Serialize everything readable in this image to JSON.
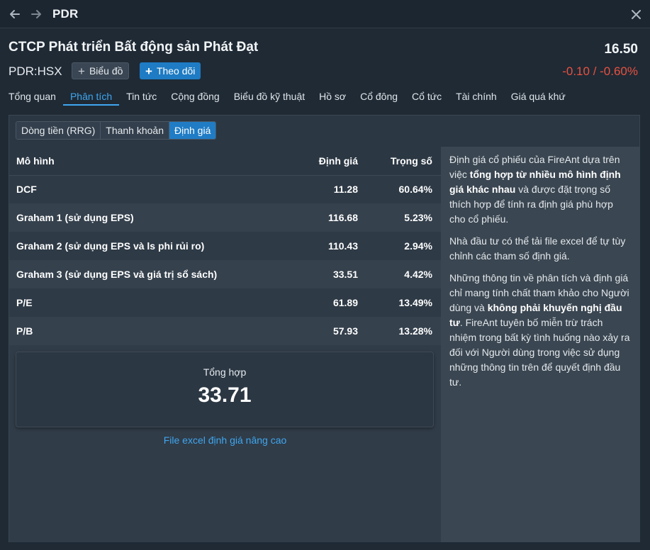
{
  "window": {
    "title": "PDR"
  },
  "header": {
    "company_name": "CTCP Phát triển Bất động sản Phát Đạt",
    "ticker": "PDR:HSX",
    "price": "16.50",
    "change": "-0.10 / -0.60%",
    "chart_button": "Biểu đồ",
    "follow_button": "Theo dõi",
    "colors": {
      "negative": "#e8513f",
      "accent": "#1e7bc4",
      "link": "#3fa6ef"
    }
  },
  "tabs": [
    {
      "label": "Tổng quan",
      "active": false
    },
    {
      "label": "Phân tích",
      "active": true
    },
    {
      "label": "Tin tức",
      "active": false
    },
    {
      "label": "Cộng đồng",
      "active": false
    },
    {
      "label": "Biểu đồ kỹ thuật",
      "active": false
    },
    {
      "label": "Hồ sơ",
      "active": false
    },
    {
      "label": "Cổ đông",
      "active": false
    },
    {
      "label": "Cổ tức",
      "active": false
    },
    {
      "label": "Tài chính",
      "active": false
    },
    {
      "label": "Giá quá khứ",
      "active": false
    }
  ],
  "subtabs": [
    {
      "label": "Dòng tiền (RRG)",
      "active": false
    },
    {
      "label": "Thanh khoản",
      "active": false
    },
    {
      "label": "Định giá",
      "active": true
    }
  ],
  "valuation": {
    "columns": {
      "model": "Mô hình",
      "value": "Định giá",
      "weight": "Trọng số"
    },
    "rows": [
      {
        "model": "DCF",
        "value": "11.28",
        "weight": "60.64%"
      },
      {
        "model": "Graham 1 (sử dụng EPS)",
        "value": "116.68",
        "weight": "5.23%"
      },
      {
        "model": "Graham 2 (sử dụng EPS và ls phi rủi ro)",
        "value": "110.43",
        "weight": "2.94%"
      },
      {
        "model": "Graham 3 (sử dụng EPS và giá trị sổ sách)",
        "value": "33.51",
        "weight": "4.42%"
      },
      {
        "model": "P/E",
        "value": "61.89",
        "weight": "13.49%"
      },
      {
        "model": "P/B",
        "value": "57.93",
        "weight": "13.28%"
      }
    ],
    "summary_label": "Tổng hợp",
    "summary_value": "33.71",
    "excel_link": "File excel định giá nâng cao"
  },
  "notes": {
    "p1_a": "Định giá cổ phiếu của FireAnt dựa trên việc ",
    "p1_b": "tổng hợp từ nhiều mô hình định giá khác nhau",
    "p1_c": " và được đặt trọng số thích hợp để tính ra định giá phù hợp cho cổ phiếu.",
    "p2": "Nhà đầu tư có thể tải file excel để tự tùy chỉnh các tham số định giá.",
    "p3_a": "Những thông tin về phân tích và định giá chỉ mang tính chất tham khảo cho Người dùng và ",
    "p3_b": "không phải khuyến nghị đầu tư",
    "p3_c": ". FireAnt tuyên bố miễn trừ trách nhiệm trong bất kỳ tình huống nào xảy ra đối với Người dùng trong việc sử dụng những thông tin trên để quyết định đầu tư."
  }
}
